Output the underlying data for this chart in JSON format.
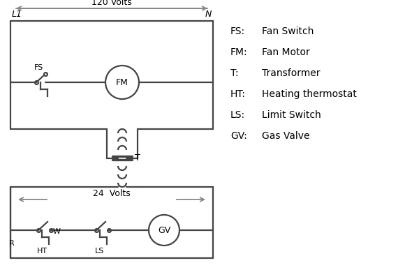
{
  "bg_color": "#ffffff",
  "line_color": "#444444",
  "arrow_color": "#888888",
  "lw": 1.6,
  "legend_items": [
    [
      "FS:",
      "Fan Switch"
    ],
    [
      "FM:",
      "Fan Motor"
    ],
    [
      "T:",
      "Transformer"
    ],
    [
      "HT:",
      "Heating thermostat"
    ],
    [
      "LS:",
      "Limit Switch"
    ],
    [
      "GV:",
      "Gas Valve"
    ]
  ],
  "label_L1": "L1",
  "label_N": "N",
  "label_120V": "120 Volts",
  "label_24V": "24  Volts",
  "label_T": "T",
  "label_FS": "FS",
  "label_FM": "FM",
  "label_GV": "GV",
  "label_R": "R",
  "label_W": "W",
  "label_HT": "HT",
  "label_LS": "LS"
}
